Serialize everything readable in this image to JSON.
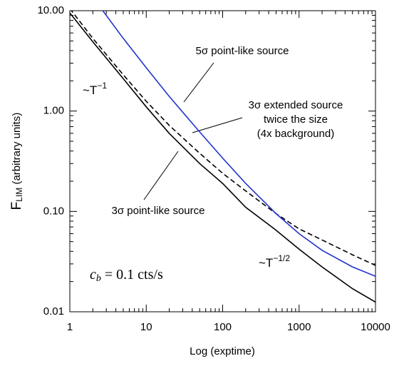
{
  "chart_data": {
    "type": "line",
    "x_label": "Log (exptime)",
    "y_label": {
      "base": "F",
      "sub": "LIM",
      "rest": " (arbitrary units)"
    },
    "xscale": "log",
    "yscale": "log",
    "xlim": [
      1,
      10000
    ],
    "ylim": [
      0.01,
      10
    ],
    "xticks": [
      1,
      10,
      100,
      1000,
      10000
    ],
    "yticks": [
      {
        "value": 10,
        "label": "10.00"
      },
      {
        "value": 1,
        "label": "1.00"
      },
      {
        "value": 0.1,
        "label": "0.10"
      },
      {
        "value": 0.01,
        "label": "0.01"
      }
    ],
    "series": [
      {
        "name": "3σ point-like source",
        "color": "#000000",
        "dash": "solid",
        "width": 2.4,
        "x": [
          1,
          2,
          5,
          10,
          20,
          50,
          100,
          200,
          500,
          1000,
          2000,
          5000,
          10000
        ],
        "values": [
          9.5,
          4.9,
          2.1,
          1.1,
          0.6,
          0.3,
          0.19,
          0.11,
          0.065,
          0.042,
          0.028,
          0.017,
          0.0125
        ]
      },
      {
        "name": "3σ extended source twice the size (4x background)",
        "color": "#000000",
        "dash": "dashed",
        "width": 1.8,
        "x": [
          1,
          2,
          5,
          10,
          20,
          50,
          100,
          200,
          500,
          1000,
          2000,
          5000,
          10000
        ],
        "values": [
          10.5,
          5.3,
          2.3,
          1.25,
          0.72,
          0.38,
          0.24,
          0.16,
          0.095,
          0.067,
          0.052,
          0.037,
          0.029
        ]
      },
      {
        "name": "5σ point-like source",
        "color": "#2233cc",
        "dash": "solid",
        "width": 1.3,
        "x": [
          2.7,
          5,
          10,
          20,
          50,
          100,
          200,
          500,
          1000,
          2000,
          5000,
          10000
        ],
        "values": [
          10,
          5.3,
          2.7,
          1.4,
          0.62,
          0.34,
          0.19,
          0.095,
          0.06,
          0.041,
          0.028,
          0.0226
        ]
      }
    ],
    "annotations": [
      {
        "lines": [
          "5σ point-like source"
        ]
      },
      {
        "lines": [
          "3σ extended source",
          "twice the size",
          "(4x background)"
        ]
      },
      {
        "lines": [
          "3σ point-like source"
        ]
      },
      {
        "base": "~T",
        "sup": "−1"
      },
      {
        "base": "~T",
        "sup": "−1/2"
      },
      {
        "italic": "c",
        "sub": "b",
        "rest": " = 0.1 cts/s"
      }
    ]
  }
}
